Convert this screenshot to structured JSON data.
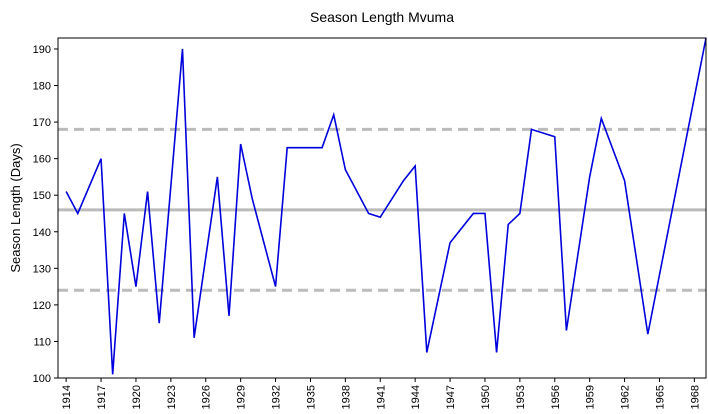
{
  "chart_data": {
    "type": "line",
    "title": "Season Length Mvuma",
    "y_label": "Season Length (Days)",
    "x": [
      1914,
      1915,
      1917,
      1918,
      1919,
      1920,
      1921,
      1922,
      1924,
      1925,
      1927,
      1928,
      1929,
      1930,
      1932,
      1933,
      1936,
      1937,
      1938,
      1940,
      1941,
      1943,
      1944,
      1945,
      1947,
      1949,
      1950,
      1951,
      1952,
      1953,
      1954,
      1956,
      1957,
      1959,
      1960,
      1962,
      1964,
      1969
    ],
    "series": [
      {
        "name": "Season Length",
        "color": "#0000dd",
        "values": [
          151,
          145,
          160,
          101,
          145,
          125,
          151,
          115,
          190,
          111,
          155,
          117,
          164,
          149,
          125,
          163,
          163,
          172,
          157,
          145,
          144,
          154,
          158,
          107,
          137,
          145,
          145,
          107,
          142,
          145,
          168,
          166,
          113,
          155,
          171,
          154,
          112,
          193
        ]
      }
    ],
    "reference_lines": [
      {
        "value": 146,
        "style": "solid",
        "color": "#bbbbbb"
      },
      {
        "value": 168,
        "style": "dashed",
        "color": "#bbbbbb"
      },
      {
        "value": 124,
        "style": "dashed",
        "color": "#bbbbbb"
      }
    ],
    "xlim": [
      1913.3,
      1969
    ],
    "xticks": [
      1914,
      1917,
      1920,
      1923,
      1926,
      1929,
      1932,
      1935,
      1938,
      1941,
      1944,
      1947,
      1950,
      1953,
      1956,
      1959,
      1962,
      1965,
      1968
    ],
    "ylim": [
      100,
      193
    ],
    "yticks": [
      100,
      110,
      120,
      130,
      140,
      150,
      160,
      170,
      180,
      190
    ]
  }
}
